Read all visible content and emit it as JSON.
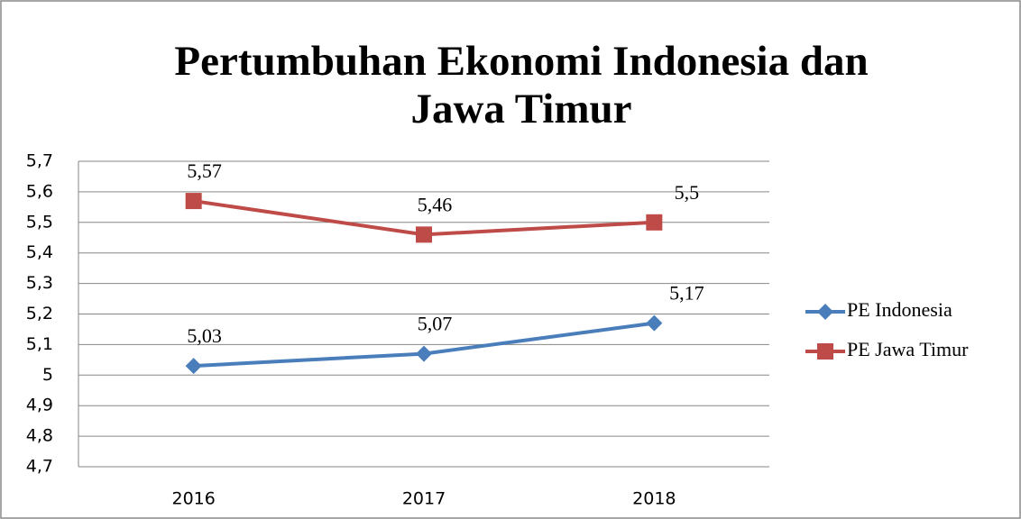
{
  "chart_data": {
    "type": "line",
    "title": "Pertumbuhan Ekonomi Indonesia dan Jawa Timur",
    "categories": [
      "2016",
      "2017",
      "2018"
    ],
    "series": [
      {
        "name": "PE Indonesia",
        "color": "#4a7ebb",
        "marker": "diamond",
        "values": [
          5.03,
          5.07,
          5.17
        ],
        "value_labels": [
          "5,03",
          "5,07",
          "5,17"
        ]
      },
      {
        "name": "PE Jawa Timur",
        "color": "#be4b48",
        "marker": "square",
        "values": [
          5.57,
          5.46,
          5.5
        ],
        "value_labels": [
          "5,57",
          "5,46",
          "5,5"
        ]
      }
    ],
    "ylim": [
      4.7,
      5.7
    ],
    "yticks": [
      {
        "value": 4.7,
        "label": "4,7"
      },
      {
        "value": 4.8,
        "label": "4,8"
      },
      {
        "value": 4.9,
        "label": "4,9"
      },
      5,
      {
        "value": 5.1,
        "label": "5,1"
      },
      {
        "value": 5.2,
        "label": "5,2"
      },
      {
        "value": 5.3,
        "label": "5,3"
      },
      {
        "value": 5.4,
        "label": "5,4"
      },
      {
        "value": 5.5,
        "label": "5,5"
      },
      {
        "value": 5.6,
        "label": "5,6"
      },
      {
        "value": 5.7,
        "label": "5,7"
      }
    ],
    "grid": true,
    "legend": "right"
  }
}
